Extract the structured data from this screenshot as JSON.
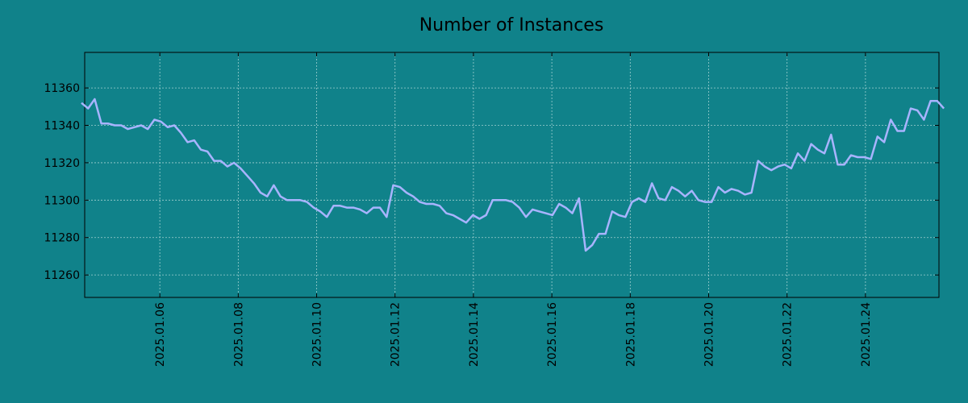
{
  "chart_data": {
    "type": "line",
    "title": "Number of Instances",
    "xlabel": "",
    "ylabel": "",
    "x_range": [
      "2025.01.04",
      "2025.01.25"
    ],
    "xlim": [
      "2025-01-04T02:00",
      "2025-01-25T21:00"
    ],
    "ylim": [
      11248,
      11379
    ],
    "x_ticks": [
      "2025.01.06",
      "2025.01.08",
      "2025.01.10",
      "2025.01.12",
      "2025.01.14",
      "2025.01.16",
      "2025.01.18",
      "2025.01.20",
      "2025.01.22",
      "2025.01.24"
    ],
    "y_ticks": [
      11260,
      11280,
      11300,
      11320,
      11340,
      11360
    ],
    "grid": true,
    "grid_style": "dotted",
    "colors": {
      "background": "#10828a",
      "line": "#a8b4ff",
      "axes": "#000000",
      "grid": "#9fd0d0"
    },
    "series": [
      {
        "name": "",
        "values": [
          11352,
          11349,
          11354,
          11341,
          11341,
          11340,
          11340,
          11338,
          11339,
          11340,
          11338,
          11343,
          11342,
          11339,
          11340,
          11336,
          11331,
          11332,
          11327,
          11326,
          11321,
          11321,
          11318,
          11320,
          11317,
          11313,
          11309,
          11304,
          11302,
          11308,
          11302,
          11300,
          11300,
          11300,
          11299,
          11296,
          11294,
          11291,
          11297,
          11297,
          11296,
          11296,
          11295,
          11293,
          11296,
          11296,
          11291,
          11308,
          11307,
          11304,
          11302,
          11299,
          11298,
          11298,
          11297,
          11293,
          11292,
          11290,
          11288,
          11292,
          11290,
          11292,
          11300,
          11300,
          11300,
          11299,
          11296,
          11291,
          11295,
          11294,
          11293,
          11292,
          11298,
          11296,
          11293,
          11301,
          11273,
          11276,
          11282,
          11282,
          11294,
          11292,
          11291,
          11299,
          11301,
          11299,
          11309,
          11301,
          11300,
          11307,
          11305,
          11302,
          11305,
          11300,
          11299,
          11299,
          11307,
          11304,
          11306,
          11305,
          11303,
          11304,
          11321,
          11318,
          11316,
          11318,
          11319,
          11317,
          11325,
          11321,
          11330,
          11327,
          11325,
          11335,
          11319,
          11319,
          11324,
          11323,
          11323,
          11322,
          11334,
          11331,
          11343,
          11337,
          11337,
          11349,
          11348,
          11343,
          11353,
          11353,
          11349
        ]
      }
    ]
  }
}
